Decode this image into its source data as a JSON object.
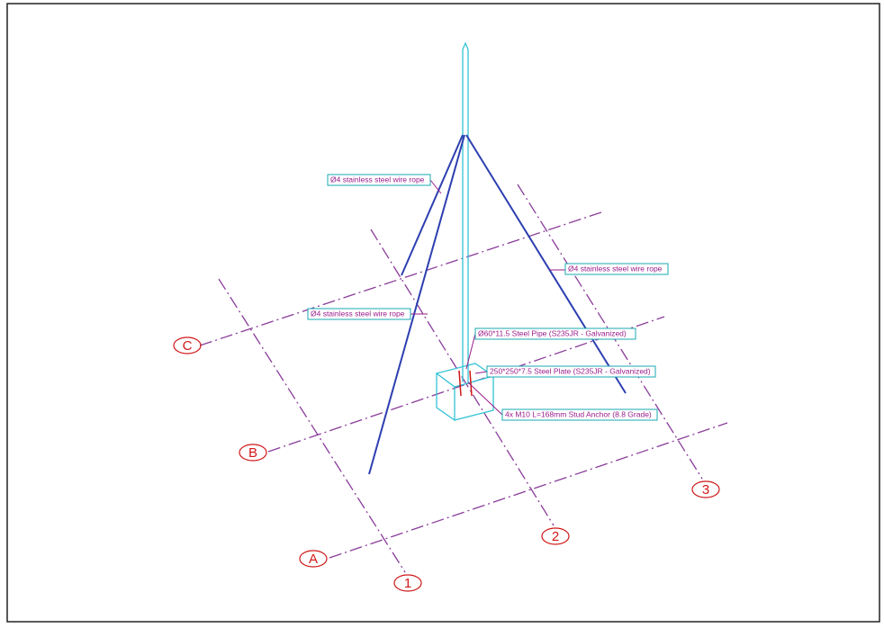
{
  "grid": {
    "rows": [
      "C",
      "B",
      "A"
    ],
    "columns": [
      "1",
      "2",
      "3"
    ]
  },
  "annotations": [
    {
      "text": "Ø4 stainless steel wire rope"
    },
    {
      "text": "Ø4 stainless steel wire rope"
    },
    {
      "text": "Ø4 stainless steel wire rope"
    },
    {
      "text": "Ø60*11.5 Steel Pipe (S235JR - Galvanized)"
    },
    {
      "text": "250*250*7.5 Steel Plate (S235JR - Galvanized)"
    },
    {
      "text": "4x M10 L=168mm Stud Anchor (8.8 Grade)"
    }
  ]
}
